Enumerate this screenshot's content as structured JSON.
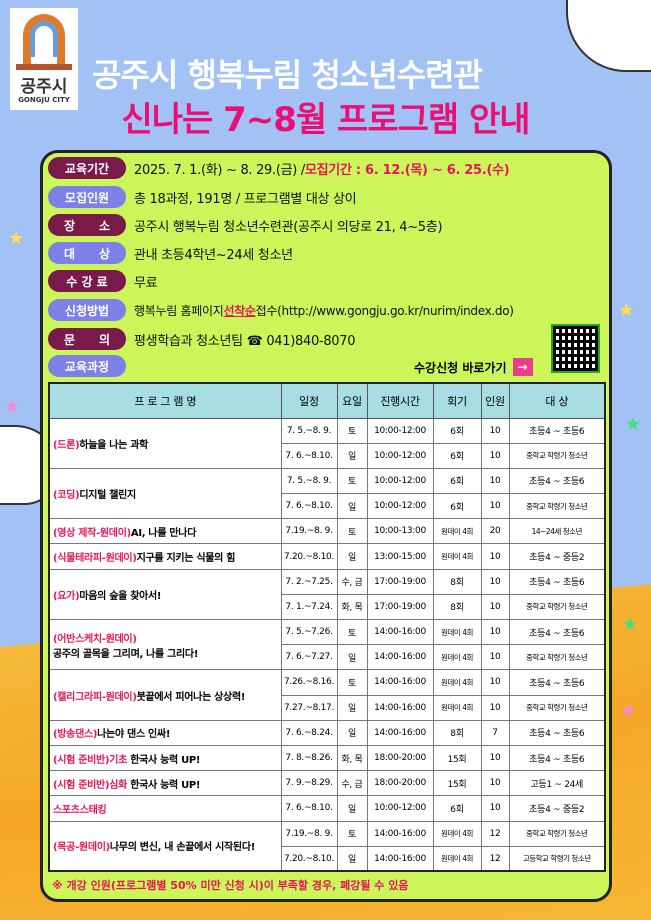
{
  "logo": {
    "kr": "공주시",
    "en": "GONGJU CITY"
  },
  "header": {
    "title": "공주시 행복누림 청소년수련관",
    "subtitle": "신나는 7~8월 프로그램 안내"
  },
  "info": [
    {
      "label": "교육기간",
      "value": "2025. 7. 1.(화) ~ 8. 29.(금) / ",
      "highlight": "모집기간 : 6. 12.(목) ~ 6. 25.(수)"
    },
    {
      "label": "모집인원",
      "value": "총 18과정, 191명 / 프로그램별 대상 상이"
    },
    {
      "label": "장　　소",
      "value": "공주시 행복누림 청소년수련관(공주시 의당로 21, 4~5층)"
    },
    {
      "label": "대　　상",
      "value": "관내 초등4학년~24세 청소년"
    },
    {
      "label": "수 강 료",
      "value": "무료"
    },
    {
      "label": "신청방법",
      "value_pre": "행복누림 홈페이지 ",
      "underline": "선착순",
      "value": " 접수(http://www.gongju.go.kr/nurim/index.do)"
    },
    {
      "label": "문　　의",
      "value": "평생학습과 청소년팀 ☎ 041)840-8070"
    },
    {
      "label": "교육과정"
    }
  ],
  "apply_link": "수강신청 바로가기",
  "table": {
    "headers": [
      "프 로 그 램 명",
      "일정",
      "요일",
      "진행시간",
      "회기",
      "인원",
      "대 상"
    ],
    "programs": [
      {
        "tag": "(드론)",
        "title": "하늘을 나는 과학",
        "sessions": [
          [
            "7. 5.~8. 9.",
            "토",
            "10:00-12:00",
            "6회",
            "10",
            "초등4 ~ 초등6"
          ],
          [
            "7. 6.~8.10.",
            "일",
            "10:00-12:00",
            "6회",
            "10",
            "중학교 학령기 청소년"
          ]
        ]
      },
      {
        "tag": "(코딩)",
        "title": "디지털 챌린지",
        "sessions": [
          [
            "7. 5.~8. 9.",
            "토",
            "10:00-12:00",
            "6회",
            "10",
            "초등4 ~ 초등6"
          ],
          [
            "7. 6.~8.10.",
            "일",
            "10:00-12:00",
            "6회",
            "10",
            "중학교 학령기 청소년"
          ]
        ]
      },
      {
        "tag": "(영상  제작-원데이)",
        "title": "AI, 나를 만나다",
        "sessions": [
          [
            "7.19.~8. 9.",
            "토",
            "10:00-13:00",
            "원데이 4회",
            "20",
            "14~24세 청소년"
          ]
        ]
      },
      {
        "tag": "(식물테라피-원데이)",
        "title": "지구를 지키는 식물의 힘",
        "sessions": [
          [
            "7.20.~8.10.",
            "일",
            "13:00-15:00",
            "원데이 4회",
            "10",
            "초등4 ~ 중등2"
          ]
        ]
      },
      {
        "tag": "(요가)",
        "title": "마음의 숲을 찾아서!",
        "sessions": [
          [
            "7. 2.~7.25.",
            "수, 금",
            "17:00-19:00",
            "8회",
            "10",
            "초등4 ~ 초등6"
          ],
          [
            "7. 1.~7.24.",
            "화, 목",
            "17:00-19:00",
            "8회",
            "10",
            "중학교 학령기 청소년"
          ]
        ]
      },
      {
        "tag": "(어반스케치-원데이)",
        "title": "공주의 골목을 그리며, 나를 그리다!",
        "sessions": [
          [
            "7. 5.~7.26.",
            "토",
            "14:00-16:00",
            "원데이 4회",
            "10",
            "초등4 ~ 초등6"
          ],
          [
            "7. 6.~7.27.",
            "일",
            "14:00-16:00",
            "원데이 4회",
            "10",
            "중학교 학령기 청소년"
          ]
        ]
      },
      {
        "tag": "(캘리그라피-원데이)",
        "title": "붓끝에서 피어나는 상상력!",
        "sessions": [
          [
            "7.26.~8.16.",
            "토",
            "14:00-16:00",
            "원데이 4회",
            "10",
            "초등4 ~ 초등6"
          ],
          [
            "7.27.~8.17.",
            "일",
            "14:00-16:00",
            "원데이 4회",
            "10",
            "중학교 학령기 청소년"
          ]
        ]
      },
      {
        "tag": "(방송댄스)",
        "title": "나는야 댄스 인싸!",
        "sessions": [
          [
            "7. 6.~8.24.",
            "일",
            "14:00-16:00",
            "8회",
            "7",
            "초등4 ~ 초등6"
          ]
        ]
      },
      {
        "tag": "(시험 준비반)기초",
        "title": " 한국사 능력 UP!",
        "sessions": [
          [
            "7. 8.~8.26.",
            "화, 목",
            "18:00-20:00",
            "15회",
            "10",
            "초등4 ~ 초등6"
          ]
        ]
      },
      {
        "tag": "(시험 준비반)심화",
        "title": " 한국사 능력 UP!",
        "sessions": [
          [
            "7. 9.~8.29.",
            "수, 금",
            "18:00-20:00",
            "15회",
            "10",
            "고등1 ~ 24세"
          ]
        ]
      },
      {
        "tag": "스포츠스태킹",
        "title": "",
        "sessions": [
          [
            "7. 6.~8.10.",
            "일",
            "10:00-12:00",
            "6회",
            "10",
            "초등4 ~ 중등2"
          ]
        ]
      },
      {
        "tag": "(목공-원데이)",
        "title": "나무의 변신, 내 손끝에서 시작된다!",
        "sessions": [
          [
            "7.19.~8. 9.",
            "토",
            "14:00-16:00",
            "원데이 4회",
            "12",
            "중학교 학령기 청소년"
          ],
          [
            "7.20.~8.10.",
            "일",
            "14:00-16:00",
            "원데이 4회",
            "12",
            "고등학교 학령기 청소년"
          ]
        ]
      }
    ]
  },
  "note": "※ 개강 인원(프로그램별 50% 미만 신청 시)이 부족할 경우, 폐강될 수 있음",
  "colors": {
    "background": "#a2c2f6",
    "panel": "#ccf55a",
    "pill_dark": "#7a1a4a",
    "pill_light": "#7d80e6",
    "accent": "#e8155a",
    "header_row": "#a8dde4"
  }
}
